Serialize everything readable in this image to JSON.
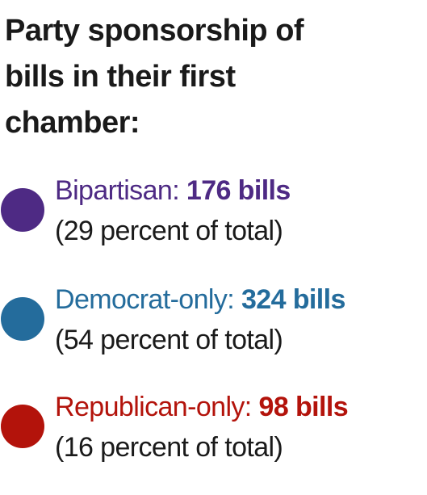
{
  "title": "Party sponsorship of bills in their first chamber:",
  "legend": [
    {
      "label": "Bipartisan:",
      "count": "176 bills",
      "share_text": "(29 percent of total)",
      "color": "#4e2a84"
    },
    {
      "label": "Democrat-only:",
      "count": "324 bills",
      "share_text": "(54 percent of total)",
      "color": "#246c9c"
    },
    {
      "label": "Republican-only:",
      "count": "98 bills",
      "share_text": "(16 percent of total)",
      "color": "#b3130b"
    }
  ]
}
